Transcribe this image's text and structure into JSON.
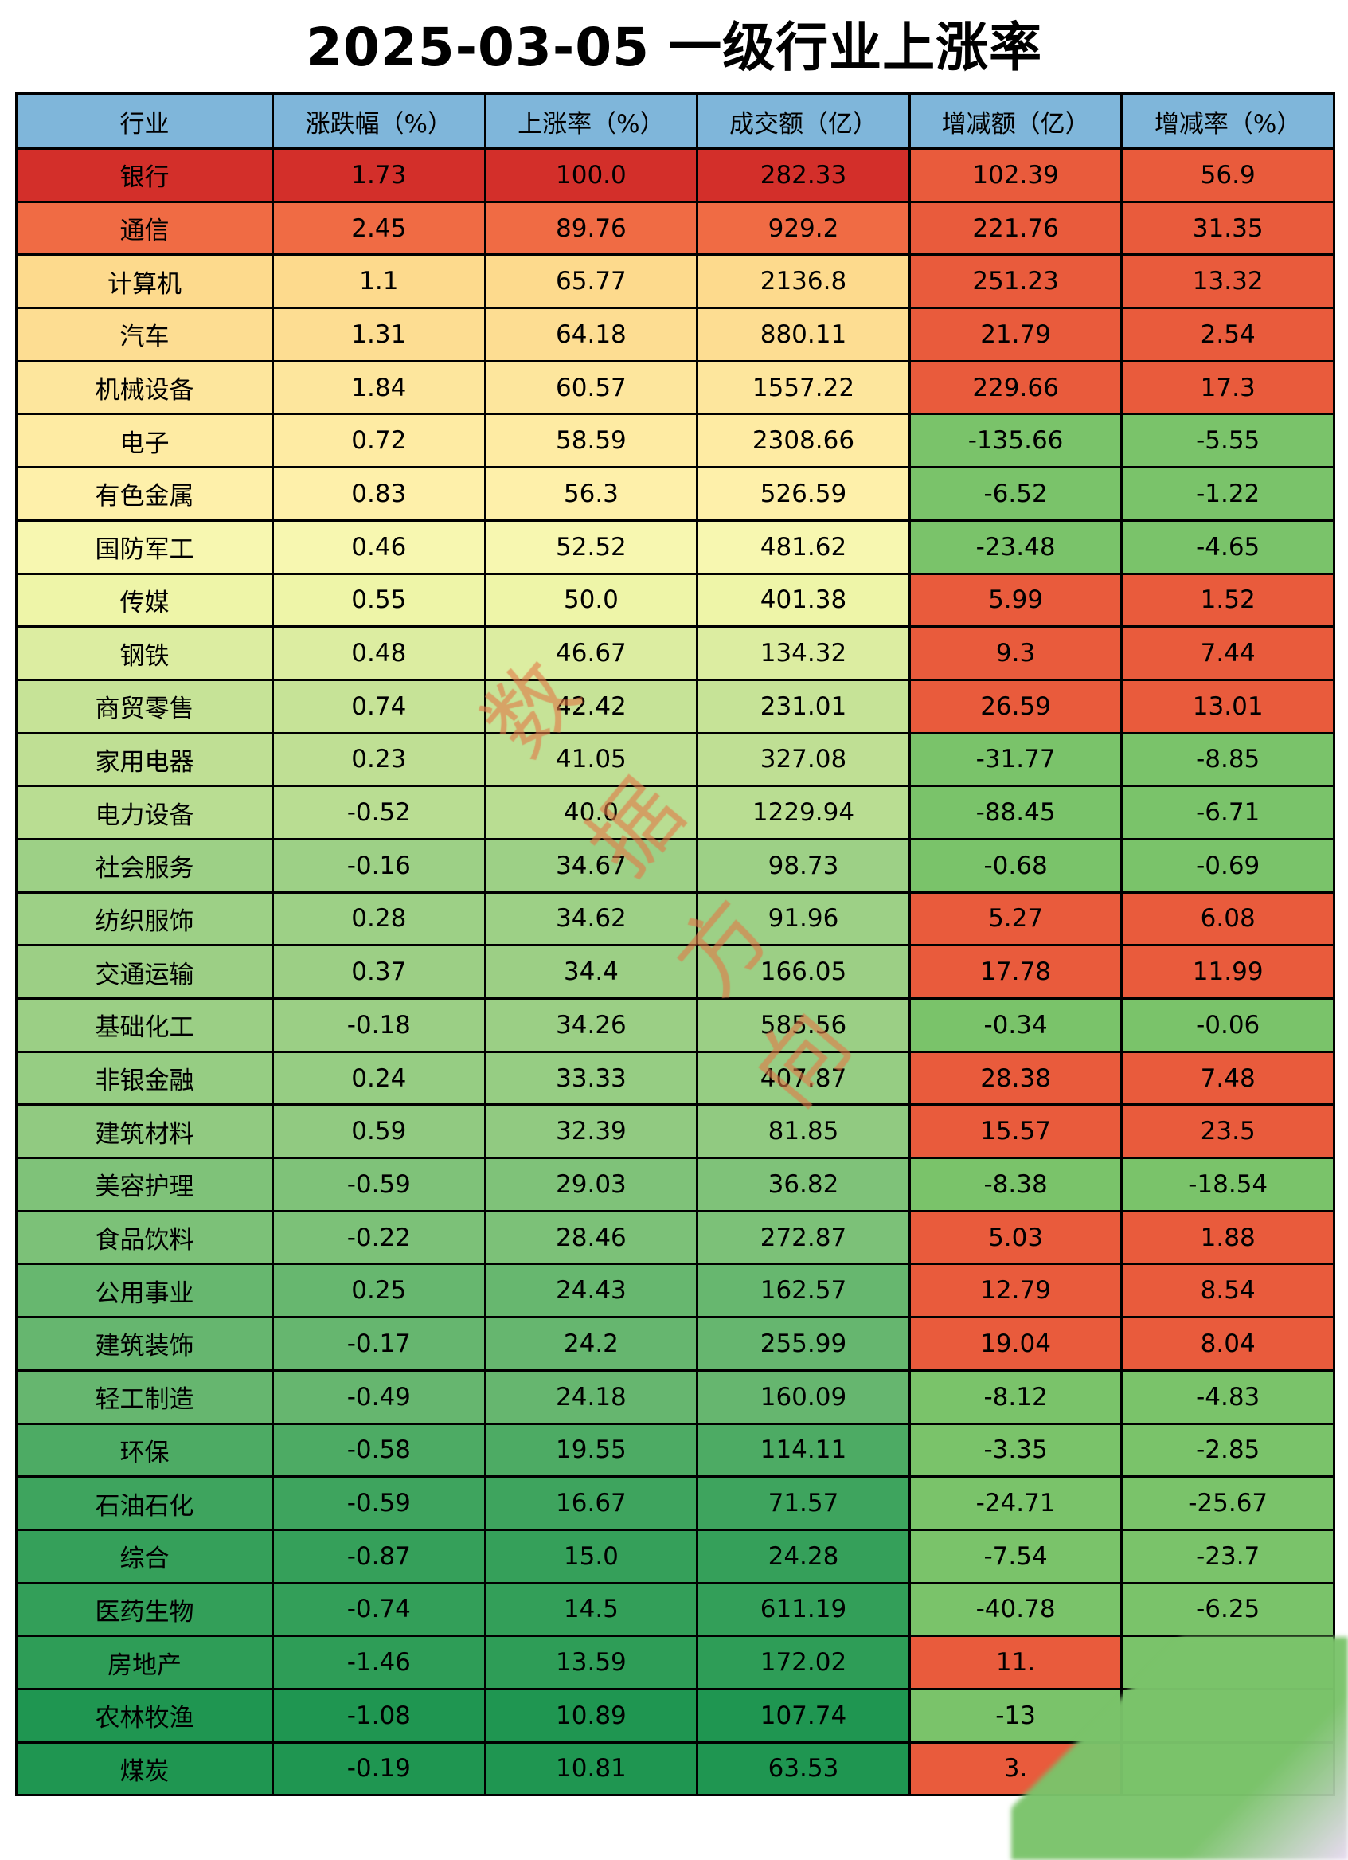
{
  "title": "2025-03-05 一级行业上涨率",
  "watermark": "数据方向",
  "colors": {
    "header": "#7FB6DA",
    "positive_change": "#E95B3C",
    "negative_change": "#7AC36A",
    "scale_high": "#D32F2A",
    "scale_upper": "#F06A43",
    "scale_mid": "#FFF9B8",
    "scale_low": "#1F9651"
  },
  "columns": [
    "行业",
    "涨跌幅（%）",
    "上涨率（%）",
    "成交额（亿）",
    "增减额（亿）",
    "增减率（%）"
  ],
  "rows": [
    [
      "银行",
      "1.73",
      "100.0",
      "282.33",
      "102.39",
      "56.9"
    ],
    [
      "通信",
      "2.45",
      "89.76",
      "929.2",
      "221.76",
      "31.35"
    ],
    [
      "计算机",
      "1.1",
      "65.77",
      "2136.8",
      "251.23",
      "13.32"
    ],
    [
      "汽车",
      "1.31",
      "64.18",
      "880.11",
      "21.79",
      "2.54"
    ],
    [
      "机械设备",
      "1.84",
      "60.57",
      "1557.22",
      "229.66",
      "17.3"
    ],
    [
      "电子",
      "0.72",
      "58.59",
      "2308.66",
      "-135.66",
      "-5.55"
    ],
    [
      "有色金属",
      "0.83",
      "56.3",
      "526.59",
      "-6.52",
      "-1.22"
    ],
    [
      "国防军工",
      "0.46",
      "52.52",
      "481.62",
      "-23.48",
      "-4.65"
    ],
    [
      "传媒",
      "0.55",
      "50.0",
      "401.38",
      "5.99",
      "1.52"
    ],
    [
      "钢铁",
      "0.48",
      "46.67",
      "134.32",
      "9.3",
      "7.44"
    ],
    [
      "商贸零售",
      "0.74",
      "42.42",
      "231.01",
      "26.59",
      "13.01"
    ],
    [
      "家用电器",
      "0.23",
      "41.05",
      "327.08",
      "-31.77",
      "-8.85"
    ],
    [
      "电力设备",
      "-0.52",
      "40.0",
      "1229.94",
      "-88.45",
      "-6.71"
    ],
    [
      "社会服务",
      "-0.16",
      "34.67",
      "98.73",
      "-0.68",
      "-0.69"
    ],
    [
      "纺织服饰",
      "0.28",
      "34.62",
      "91.96",
      "5.27",
      "6.08"
    ],
    [
      "交通运输",
      "0.37",
      "34.4",
      "166.05",
      "17.78",
      "11.99"
    ],
    [
      "基础化工",
      "-0.18",
      "34.26",
      "585.56",
      "-0.34",
      "-0.06"
    ],
    [
      "非银金融",
      "0.24",
      "33.33",
      "407.87",
      "28.38",
      "7.48"
    ],
    [
      "建筑材料",
      "0.59",
      "32.39",
      "81.85",
      "15.57",
      "23.5"
    ],
    [
      "美容护理",
      "-0.59",
      "29.03",
      "36.82",
      "-8.38",
      "-18.54"
    ],
    [
      "食品饮料",
      "-0.22",
      "28.46",
      "272.87",
      "5.03",
      "1.88"
    ],
    [
      "公用事业",
      "0.25",
      "24.43",
      "162.57",
      "12.79",
      "8.54"
    ],
    [
      "建筑装饰",
      "-0.17",
      "24.2",
      "255.99",
      "19.04",
      "8.04"
    ],
    [
      "轻工制造",
      "-0.49",
      "24.18",
      "160.09",
      "-8.12",
      "-4.83"
    ],
    [
      "环保",
      "-0.58",
      "19.55",
      "114.11",
      "-3.35",
      "-2.85"
    ],
    [
      "石油石化",
      "-0.59",
      "16.67",
      "71.57",
      "-24.71",
      "-25.67"
    ],
    [
      "综合",
      "-0.87",
      "15.0",
      "24.28",
      "-7.54",
      "-23.7"
    ],
    [
      "医药生物",
      "-0.74",
      "14.5",
      "611.19",
      "-40.78",
      "-6.25"
    ],
    [
      "房地产",
      "-1.46",
      "13.59",
      "172.02",
      "11.",
      ""
    ],
    [
      "农林牧渔",
      "-1.08",
      "10.89",
      "107.74",
      "-13",
      ""
    ],
    [
      "煤炭",
      "-0.19",
      "10.81",
      "63.53",
      "3.",
      ""
    ]
  ],
  "hidden_cell_signs": [
    1,
    -1,
    1
  ]
}
